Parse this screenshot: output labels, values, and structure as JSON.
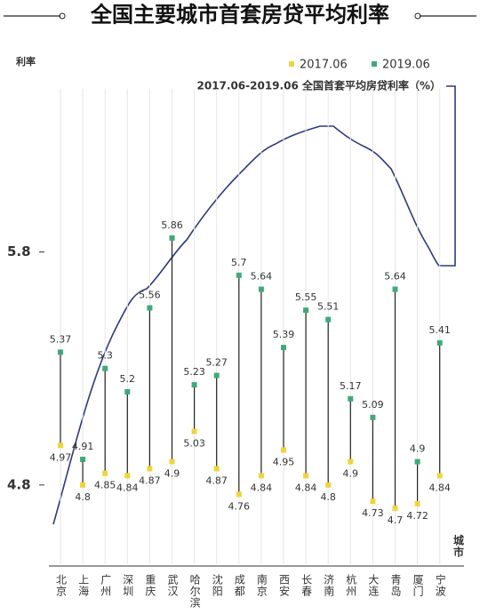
{
  "chart_data": {
    "type": "dumbbell",
    "title": "全国主要城市首套房贷平均利率",
    "subtitle": "2017.06-2019.06 全国首套平均房贷利率（%）",
    "y_label": "利率",
    "x_label": "城市",
    "categories": [
      "北京",
      "上海",
      "广州",
      "深圳",
      "重庆",
      "武汉",
      "哈尔滨",
      "沈阳",
      "成都",
      "南京",
      "西安",
      "长春",
      "济南",
      "杭州",
      "大连",
      "青岛",
      "厦门",
      "宁波"
    ],
    "series": [
      {
        "name": "2017.06",
        "color": "#f0d43a",
        "values": [
          4.97,
          4.8,
          4.85,
          4.84,
          4.87,
          4.9,
          5.03,
          4.87,
          4.76,
          4.84,
          4.95,
          4.84,
          4.8,
          4.9,
          4.73,
          4.7,
          4.72,
          4.84
        ]
      },
      {
        "name": "2019.06",
        "color": "#3fa97a",
        "values": [
          5.37,
          4.91,
          5.3,
          5.2,
          5.56,
          5.86,
          5.23,
          5.27,
          5.7,
          5.64,
          5.39,
          5.55,
          5.51,
          5.17,
          5.09,
          5.64,
          4.9,
          5.41
        ]
      }
    ],
    "ylim": [
      4.46,
      6.5
    ],
    "yticks": [
      4.8,
      5.8
    ],
    "grid": true
  }
}
